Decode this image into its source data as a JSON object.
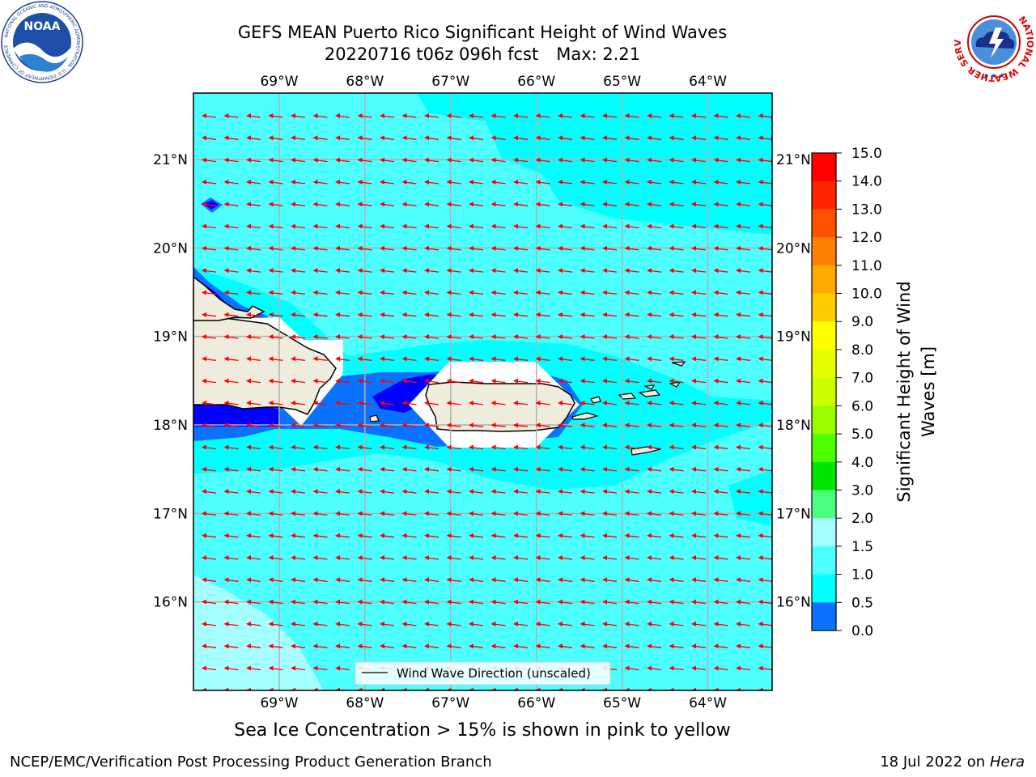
{
  "header": {
    "title_line1": "GEFS MEAN Puerto Rico Significant Height of Wind Waves",
    "title_line2_left": "20220716 t06z 096h fcst",
    "title_line2_right": "Max: 2.21"
  },
  "logos": {
    "left": {
      "name": "noaa-logo",
      "text": "NOAA",
      "ring_text": "NATIONAL OCEANIC AND ATMOSPHERIC ADMINISTRATION · U.S. DEPARTMENT OF COMMERCE"
    },
    "right": {
      "name": "nws-logo",
      "ring_text": "NATIONAL WEATHER SERVICE"
    }
  },
  "map": {
    "lon_labels": [
      "69°W",
      "68°W",
      "67°W",
      "66°W",
      "65°W",
      "64°W"
    ],
    "lat_labels": [
      "21°N",
      "20°N",
      "19°N",
      "18°N",
      "17°N",
      "16°N"
    ],
    "lon_values": [
      -69,
      -68,
      -67,
      -66,
      -65,
      -64
    ],
    "lat_values": [
      21,
      20,
      19,
      18,
      17,
      16
    ],
    "extent": {
      "lon_min": -70,
      "lon_max": -63.25,
      "lat_min": 15,
      "lat_max": 21.75
    },
    "legend_label": "Wind Wave Direction (unscaled)",
    "arrow_color": "#ff0000",
    "land_color": "#eeecdc",
    "field_colors": {
      "0.0-0.5": "#0000ff",
      "0.5-1.0": "#0a72ff",
      "1.0-1.5": "#00ffff",
      "1.5-2.0": "#4dffff",
      "2.0-3.0": "#a6ffff"
    }
  },
  "colorbar": {
    "label": "Significant Height of Wind Waves [m]",
    "label_line1": "Significant Height of Wind",
    "label_line2": "Waves [m]",
    "ticks": [
      "15.0",
      "14.0",
      "13.0",
      "12.0",
      "11.0",
      "10.0",
      "9.0",
      "8.0",
      "7.0",
      "6.0",
      "5.0",
      "4.0",
      "3.0",
      "2.0",
      "1.5",
      "1.0",
      "0.5",
      "0.0"
    ],
    "colors": [
      "#ff0000",
      "#ff2400",
      "#ff5000",
      "#ff7f00",
      "#ffaa00",
      "#ffcc00",
      "#ffff00",
      "#e6ff00",
      "#ccff00",
      "#99ff00",
      "#4dff00",
      "#00e600",
      "#4dff80",
      "#a6ffff",
      "#4dffff",
      "#00ffff",
      "#0a72ff",
      "#0000ff"
    ]
  },
  "footer": {
    "note": "Sea Ice Concentration > 15% is shown in pink to yellow",
    "left": "NCEP/EMC/Verification Post Processing Product Generation Branch",
    "right_date": "18 Jul 2022 on ",
    "right_machine": "Hera"
  }
}
